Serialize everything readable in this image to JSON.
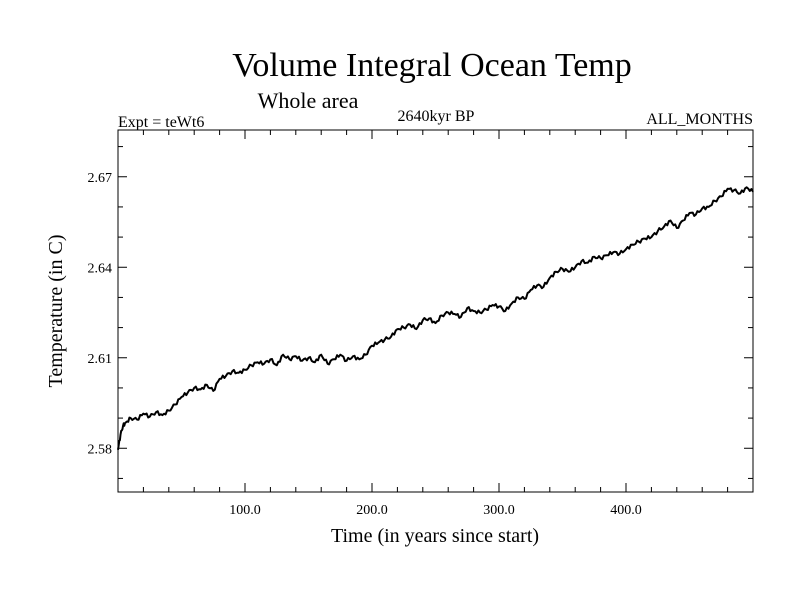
{
  "chart_data": {
    "type": "line",
    "title": "Volume Integral Ocean Temp",
    "subtitle": "Whole area",
    "header_left": "Expt = teWt6",
    "header_center": "2640kyr BP",
    "header_right": "ALL_MONTHS",
    "xlabel": "Time (in years since start)",
    "ylabel": "Temperature (in C)",
    "xlim": [
      0,
      500
    ],
    "ylim": [
      2.5655,
      2.6855
    ],
    "x_ticks": [
      100,
      200,
      300,
      400
    ],
    "x_tick_labels": [
      "100.0",
      "200.0",
      "300.0",
      "400.0"
    ],
    "y_ticks": [
      2.58,
      2.61,
      2.64,
      2.67
    ],
    "y_tick_labels": [
      "2.58",
      "2.61",
      "2.64",
      "2.67"
    ],
    "grid": false,
    "line_color": "#000000",
    "series": [
      {
        "name": "Volume Integral Ocean Temp",
        "x": [
          0,
          2,
          4,
          6,
          10,
          15,
          20,
          25,
          30,
          35,
          40,
          45,
          50,
          55,
          60,
          65,
          70,
          75,
          80,
          85,
          90,
          95,
          100,
          105,
          110,
          115,
          120,
          125,
          130,
          135,
          140,
          145,
          150,
          155,
          160,
          165,
          170,
          175,
          180,
          185,
          190,
          195,
          200,
          205,
          210,
          215,
          220,
          225,
          230,
          235,
          240,
          245,
          250,
          255,
          260,
          265,
          270,
          275,
          280,
          285,
          290,
          295,
          300,
          305,
          310,
          315,
          320,
          325,
          330,
          335,
          340,
          345,
          350,
          355,
          360,
          365,
          370,
          375,
          380,
          385,
          390,
          395,
          400,
          405,
          410,
          415,
          420,
          425,
          430,
          435,
          440,
          445,
          450,
          455,
          460,
          465,
          470,
          475,
          480,
          485,
          490,
          495,
          500
        ],
        "values": [
          2.5795,
          2.5845,
          2.5875,
          2.5885,
          2.59,
          2.5895,
          2.5915,
          2.5905,
          2.592,
          2.591,
          2.5925,
          2.5945,
          2.597,
          2.5985,
          2.6,
          2.5995,
          2.601,
          2.599,
          2.603,
          2.604,
          2.6055,
          2.605,
          2.606,
          2.6075,
          2.6085,
          2.608,
          2.6095,
          2.6075,
          2.611,
          2.6095,
          2.6105,
          2.609,
          2.61,
          2.6085,
          2.611,
          2.608,
          2.6095,
          2.611,
          2.609,
          2.6105,
          2.6095,
          2.611,
          2.614,
          2.615,
          2.616,
          2.617,
          2.6195,
          2.62,
          2.621,
          2.6195,
          2.6225,
          2.623,
          2.6215,
          2.624,
          2.625,
          2.6245,
          2.6235,
          2.6265,
          2.6255,
          2.625,
          2.626,
          2.6275,
          2.627,
          2.6255,
          2.628,
          2.63,
          2.6295,
          2.6325,
          2.634,
          2.6335,
          2.6365,
          2.6385,
          2.6395,
          2.6385,
          2.64,
          2.642,
          2.6415,
          2.6435,
          2.643,
          2.644,
          2.645,
          2.6445,
          2.646,
          2.6475,
          2.6485,
          2.6495,
          2.65,
          2.652,
          2.6535,
          2.6555,
          2.653,
          2.6555,
          2.658,
          2.6575,
          2.6595,
          2.66,
          2.662,
          2.6635,
          2.666,
          2.6655,
          2.6645,
          2.6665,
          2.665
        ]
      }
    ]
  }
}
